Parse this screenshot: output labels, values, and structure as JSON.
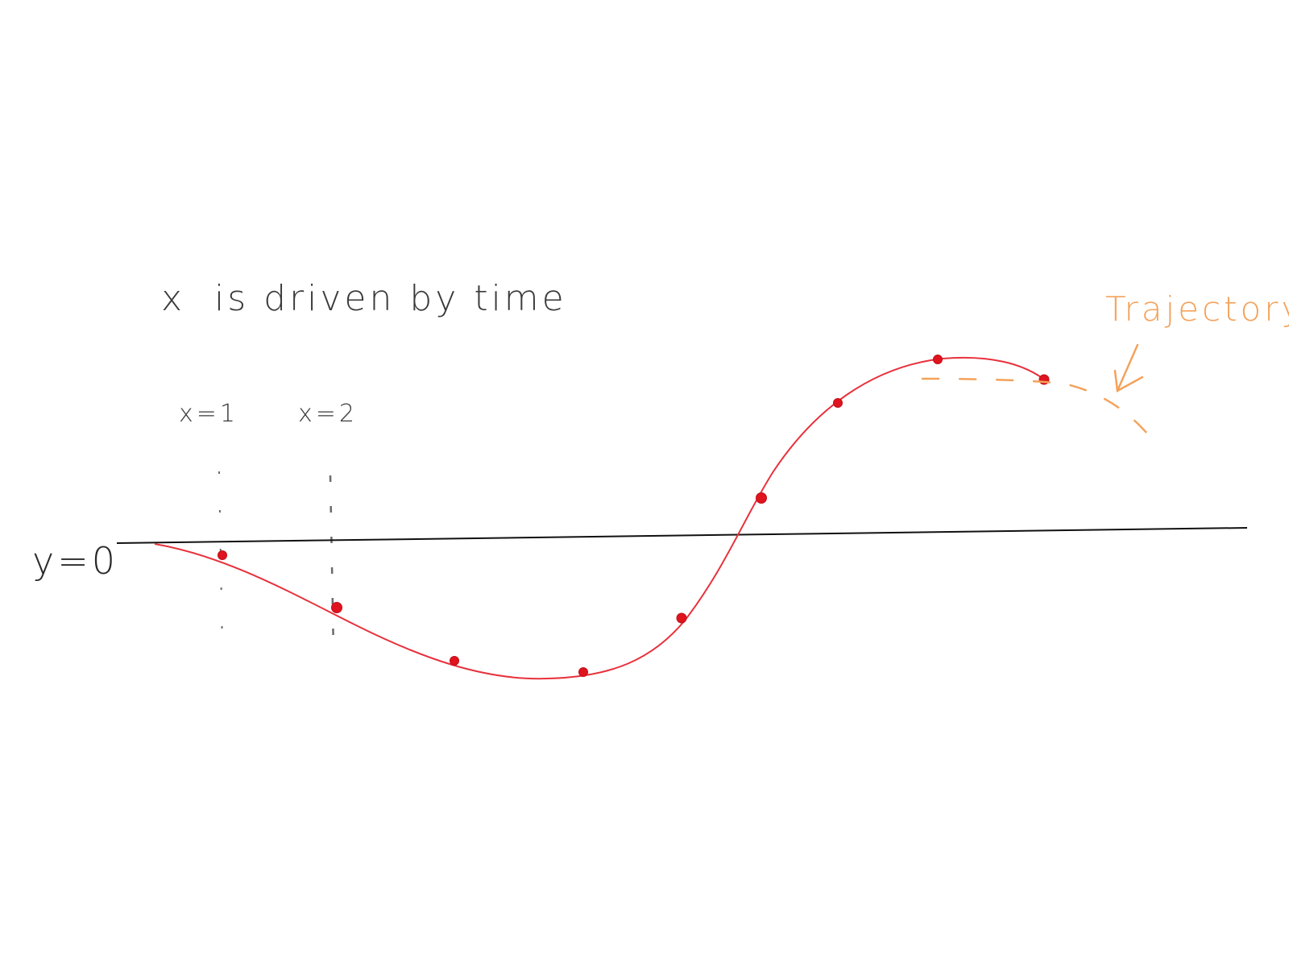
{
  "title": "x  is driven by time",
  "labels": {
    "x1": "x=1",
    "x2": "x=2",
    "baseline": "y=0"
  },
  "annotation": {
    "text": "Trajectory"
  },
  "colors": {
    "pencil": "#3a3a3a",
    "axis": "#111111",
    "curve": "#e8313c",
    "point": "#e0141e",
    "trajectory": "#f4a25b"
  }
}
